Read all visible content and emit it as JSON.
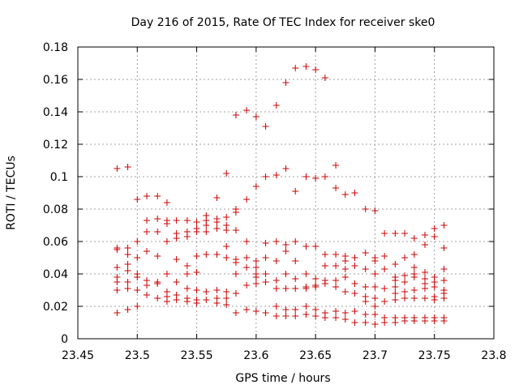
{
  "chart_data": {
    "type": "scatter",
    "title": "Day 216 of 2015, Rate Of TEC Index for receiver ske0",
    "xlabel": "GPS time / hours",
    "ylabel": "ROTI / TECUs",
    "xlim": [
      23.45,
      23.8
    ],
    "ylim": [
      0,
      0.18
    ],
    "xticks": [
      "23.45",
      "23.5",
      "23.55",
      "23.6",
      "23.65",
      "23.7",
      "23.75",
      "23.8"
    ],
    "yticks": [
      "0",
      "0.02",
      "0.04",
      "0.06",
      "0.08",
      "0.1",
      "0.12",
      "0.14",
      "0.16",
      "0.18"
    ],
    "grid": true,
    "marker": "plus",
    "color": "#cc0000",
    "series": [
      {
        "points": [
          [
            23.483,
            0.105
          ],
          [
            23.483,
            0.056
          ],
          [
            23.483,
            0.055
          ],
          [
            23.483,
            0.044
          ],
          [
            23.483,
            0.038
          ],
          [
            23.483,
            0.035
          ],
          [
            23.483,
            0.03
          ],
          [
            23.483,
            0.016
          ],
          [
            23.492,
            0.106
          ],
          [
            23.492,
            0.056
          ],
          [
            23.492,
            0.052
          ],
          [
            23.492,
            0.046
          ],
          [
            23.492,
            0.042
          ],
          [
            23.492,
            0.035
          ],
          [
            23.492,
            0.031
          ],
          [
            23.492,
            0.018
          ],
          [
            23.5,
            0.086
          ],
          [
            23.5,
            0.06
          ],
          [
            23.5,
            0.05
          ],
          [
            23.5,
            0.04
          ],
          [
            23.5,
            0.038
          ],
          [
            23.5,
            0.03
          ],
          [
            23.5,
            0.02
          ],
          [
            23.508,
            0.088
          ],
          [
            23.508,
            0.073
          ],
          [
            23.508,
            0.066
          ],
          [
            23.508,
            0.054
          ],
          [
            23.508,
            0.036
          ],
          [
            23.508,
            0.033
          ],
          [
            23.508,
            0.027
          ],
          [
            23.517,
            0.088
          ],
          [
            23.517,
            0.074
          ],
          [
            23.517,
            0.066
          ],
          [
            23.517,
            0.051
          ],
          [
            23.517,
            0.035
          ],
          [
            23.517,
            0.034
          ],
          [
            23.517,
            0.025
          ],
          [
            23.525,
            0.084
          ],
          [
            23.525,
            0.073
          ],
          [
            23.525,
            0.071
          ],
          [
            23.525,
            0.06
          ],
          [
            23.525,
            0.04
          ],
          [
            23.525,
            0.029
          ],
          [
            23.525,
            0.026
          ],
          [
            23.525,
            0.023
          ],
          [
            23.533,
            0.073
          ],
          [
            23.533,
            0.065
          ],
          [
            23.533,
            0.062
          ],
          [
            23.533,
            0.049
          ],
          [
            23.533,
            0.035
          ],
          [
            23.533,
            0.027
          ],
          [
            23.533,
            0.024
          ],
          [
            23.542,
            0.073
          ],
          [
            23.542,
            0.066
          ],
          [
            23.542,
            0.063
          ],
          [
            23.542,
            0.045
          ],
          [
            23.542,
            0.04
          ],
          [
            23.542,
            0.031
          ],
          [
            23.542,
            0.025
          ],
          [
            23.542,
            0.023
          ],
          [
            23.55,
            0.072
          ],
          [
            23.55,
            0.068
          ],
          [
            23.55,
            0.066
          ],
          [
            23.55,
            0.051
          ],
          [
            23.55,
            0.041
          ],
          [
            23.55,
            0.03
          ],
          [
            23.55,
            0.024
          ],
          [
            23.55,
            0.022
          ],
          [
            23.558,
            0.076
          ],
          [
            23.558,
            0.073
          ],
          [
            23.558,
            0.07
          ],
          [
            23.558,
            0.066
          ],
          [
            23.558,
            0.052
          ],
          [
            23.558,
            0.029
          ],
          [
            23.558,
            0.024
          ],
          [
            23.567,
            0.087
          ],
          [
            23.567,
            0.074
          ],
          [
            23.567,
            0.072
          ],
          [
            23.567,
            0.068
          ],
          [
            23.567,
            0.052
          ],
          [
            23.567,
            0.03
          ],
          [
            23.567,
            0.025
          ],
          [
            23.567,
            0.022
          ],
          [
            23.575,
            0.102
          ],
          [
            23.575,
            0.075
          ],
          [
            23.575,
            0.07
          ],
          [
            23.575,
            0.067
          ],
          [
            23.575,
            0.057
          ],
          [
            23.575,
            0.05
          ],
          [
            23.575,
            0.029
          ],
          [
            23.575,
            0.025
          ],
          [
            23.575,
            0.021
          ],
          [
            23.583,
            0.138
          ],
          [
            23.583,
            0.08
          ],
          [
            23.583,
            0.078
          ],
          [
            23.583,
            0.067
          ],
          [
            23.583,
            0.049
          ],
          [
            23.583,
            0.047
          ],
          [
            23.583,
            0.04
          ],
          [
            23.583,
            0.028
          ],
          [
            23.583,
            0.016
          ],
          [
            23.592,
            0.141
          ],
          [
            23.592,
            0.086
          ],
          [
            23.592,
            0.06
          ],
          [
            23.592,
            0.05
          ],
          [
            23.592,
            0.044
          ],
          [
            23.592,
            0.033
          ],
          [
            23.592,
            0.018
          ],
          [
            23.6,
            0.137
          ],
          [
            23.6,
            0.094
          ],
          [
            23.6,
            0.048
          ],
          [
            23.6,
            0.044
          ],
          [
            23.6,
            0.04
          ],
          [
            23.6,
            0.038
          ],
          [
            23.6,
            0.034
          ],
          [
            23.6,
            0.017
          ],
          [
            23.608,
            0.131
          ],
          [
            23.608,
            0.1
          ],
          [
            23.608,
            0.059
          ],
          [
            23.608,
            0.05
          ],
          [
            23.608,
            0.04
          ],
          [
            23.608,
            0.035
          ],
          [
            23.608,
            0.016
          ],
          [
            23.617,
            0.144
          ],
          [
            23.617,
            0.101
          ],
          [
            23.617,
            0.06
          ],
          [
            23.617,
            0.048
          ],
          [
            23.617,
            0.036
          ],
          [
            23.617,
            0.031
          ],
          [
            23.617,
            0.02
          ],
          [
            23.617,
            0.014
          ],
          [
            23.625,
            0.158
          ],
          [
            23.625,
            0.105
          ],
          [
            23.625,
            0.058
          ],
          [
            23.625,
            0.054
          ],
          [
            23.625,
            0.04
          ],
          [
            23.625,
            0.031
          ],
          [
            23.625,
            0.018
          ],
          [
            23.625,
            0.014
          ],
          [
            23.633,
            0.167
          ],
          [
            23.633,
            0.091
          ],
          [
            23.633,
            0.06
          ],
          [
            23.633,
            0.048
          ],
          [
            23.633,
            0.037
          ],
          [
            23.633,
            0.031
          ],
          [
            23.633,
            0.018
          ],
          [
            23.633,
            0.014
          ],
          [
            23.642,
            0.168
          ],
          [
            23.642,
            0.1
          ],
          [
            23.642,
            0.057
          ],
          [
            23.642,
            0.04
          ],
          [
            23.642,
            0.032
          ],
          [
            23.642,
            0.031
          ],
          [
            23.642,
            0.02
          ],
          [
            23.642,
            0.015
          ],
          [
            23.65,
            0.166
          ],
          [
            23.65,
            0.099
          ],
          [
            23.65,
            0.057
          ],
          [
            23.65,
            0.037
          ],
          [
            23.65,
            0.033
          ],
          [
            23.65,
            0.032
          ],
          [
            23.65,
            0.018
          ],
          [
            23.65,
            0.014
          ],
          [
            23.658,
            0.161
          ],
          [
            23.658,
            0.1
          ],
          [
            23.658,
            0.052
          ],
          [
            23.658,
            0.045
          ],
          [
            23.658,
            0.036
          ],
          [
            23.658,
            0.034
          ],
          [
            23.658,
            0.016
          ],
          [
            23.658,
            0.013
          ],
          [
            23.667,
            0.107
          ],
          [
            23.667,
            0.093
          ],
          [
            23.667,
            0.052
          ],
          [
            23.667,
            0.045
          ],
          [
            23.667,
            0.036
          ],
          [
            23.667,
            0.032
          ],
          [
            23.667,
            0.017
          ],
          [
            23.667,
            0.013
          ],
          [
            23.675,
            0.089
          ],
          [
            23.675,
            0.051
          ],
          [
            23.675,
            0.048
          ],
          [
            23.675,
            0.043
          ],
          [
            23.675,
            0.038
          ],
          [
            23.675,
            0.029
          ],
          [
            23.675,
            0.016
          ],
          [
            23.675,
            0.012
          ],
          [
            23.683,
            0.09
          ],
          [
            23.683,
            0.05
          ],
          [
            23.683,
            0.045
          ],
          [
            23.683,
            0.034
          ],
          [
            23.683,
            0.028
          ],
          [
            23.683,
            0.017
          ],
          [
            23.683,
            0.01
          ],
          [
            23.692,
            0.08
          ],
          [
            23.692,
            0.053
          ],
          [
            23.692,
            0.043
          ],
          [
            23.692,
            0.032
          ],
          [
            23.692,
            0.026
          ],
          [
            23.692,
            0.023
          ],
          [
            23.692,
            0.015
          ],
          [
            23.692,
            0.01
          ],
          [
            23.7,
            0.079
          ],
          [
            23.7,
            0.05
          ],
          [
            23.7,
            0.048
          ],
          [
            23.7,
            0.04
          ],
          [
            23.7,
            0.032
          ],
          [
            23.7,
            0.025
          ],
          [
            23.7,
            0.02
          ],
          [
            23.7,
            0.015
          ],
          [
            23.7,
            0.009
          ],
          [
            23.708,
            0.065
          ],
          [
            23.708,
            0.051
          ],
          [
            23.708,
            0.043
          ],
          [
            23.708,
            0.031
          ],
          [
            23.708,
            0.023
          ],
          [
            23.708,
            0.013
          ],
          [
            23.708,
            0.01
          ],
          [
            23.717,
            0.065
          ],
          [
            23.717,
            0.046
          ],
          [
            23.717,
            0.038
          ],
          [
            23.717,
            0.036
          ],
          [
            23.717,
            0.032
          ],
          [
            23.717,
            0.028
          ],
          [
            23.717,
            0.024
          ],
          [
            23.717,
            0.013
          ],
          [
            23.717,
            0.01
          ],
          [
            23.725,
            0.065
          ],
          [
            23.725,
            0.05
          ],
          [
            23.725,
            0.039
          ],
          [
            23.725,
            0.035
          ],
          [
            23.725,
            0.029
          ],
          [
            23.725,
            0.025
          ],
          [
            23.725,
            0.013
          ],
          [
            23.725,
            0.011
          ],
          [
            23.733,
            0.062
          ],
          [
            23.733,
            0.052
          ],
          [
            23.733,
            0.044
          ],
          [
            23.733,
            0.04
          ],
          [
            23.733,
            0.038
          ],
          [
            23.733,
            0.03
          ],
          [
            23.733,
            0.025
          ],
          [
            23.733,
            0.013
          ],
          [
            23.733,
            0.011
          ],
          [
            23.742,
            0.064
          ],
          [
            23.742,
            0.058
          ],
          [
            23.742,
            0.041
          ],
          [
            23.742,
            0.037
          ],
          [
            23.742,
            0.034
          ],
          [
            23.742,
            0.031
          ],
          [
            23.742,
            0.025
          ],
          [
            23.742,
            0.013
          ],
          [
            23.742,
            0.011
          ],
          [
            23.75,
            0.068
          ],
          [
            23.75,
            0.063
          ],
          [
            23.75,
            0.038
          ],
          [
            23.75,
            0.035
          ],
          [
            23.75,
            0.032
          ],
          [
            23.75,
            0.026
          ],
          [
            23.75,
            0.024
          ],
          [
            23.75,
            0.013
          ],
          [
            23.75,
            0.011
          ],
          [
            23.758,
            0.07
          ],
          [
            23.758,
            0.056
          ],
          [
            23.758,
            0.043
          ],
          [
            23.758,
            0.036
          ],
          [
            23.758,
            0.03
          ],
          [
            23.758,
            0.028
          ],
          [
            23.758,
            0.025
          ],
          [
            23.758,
            0.013
          ],
          [
            23.758,
            0.011
          ]
        ]
      }
    ]
  }
}
